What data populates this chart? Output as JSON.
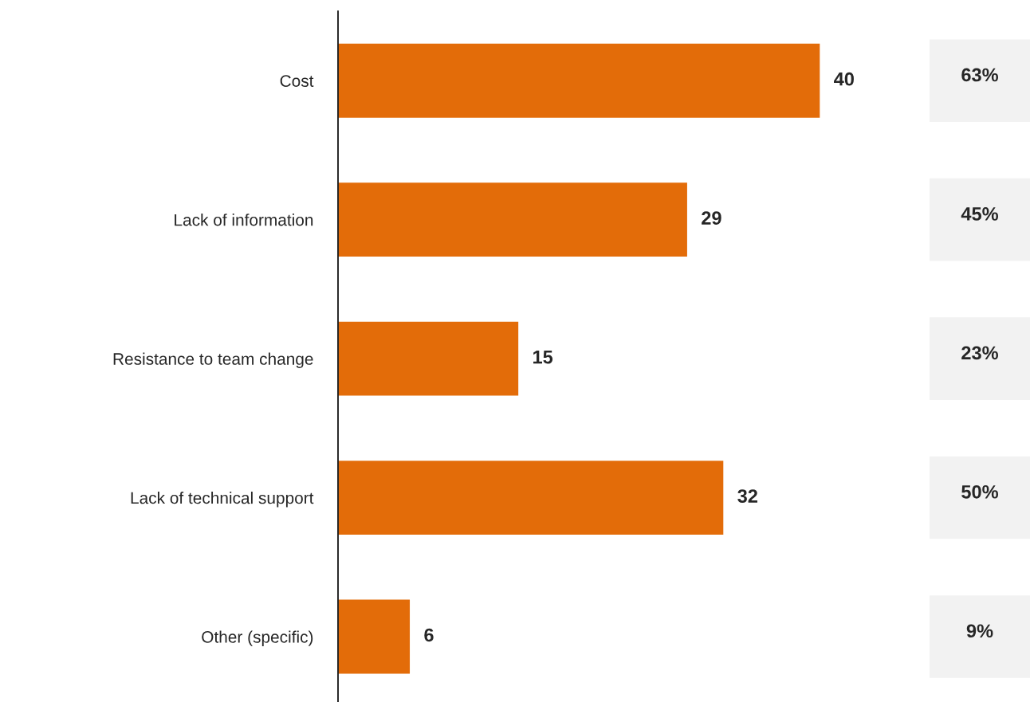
{
  "chart_data": {
    "type": "bar",
    "orientation": "horizontal",
    "categories": [
      "Cost",
      "Lack of information",
      "Resistance to team change",
      "Lack of technical support",
      "Other (specific)"
    ],
    "values": [
      40,
      29,
      15,
      32,
      6
    ],
    "color": "#e36c09",
    "data_labels": true,
    "grid": false,
    "legend": false,
    "annotations": [
      "63%",
      "45%",
      "23%",
      "50%",
      "9%"
    ]
  }
}
